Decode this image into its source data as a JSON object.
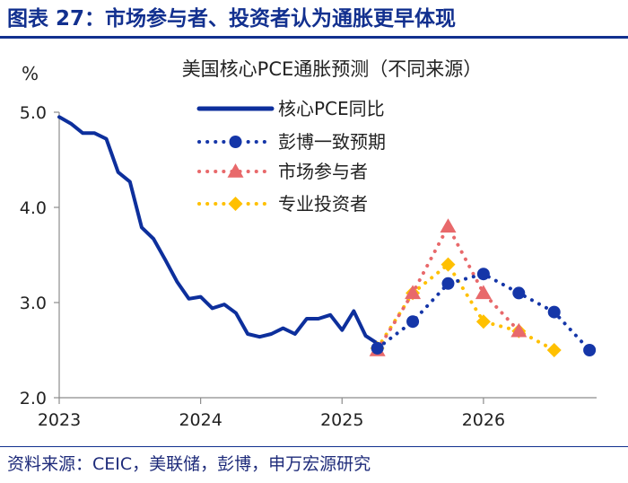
{
  "figure_title": "图表 27：市场参与者、投资者认为通胀更早体现",
  "source_text": "资料来源：CEIC，美联储，彭博，申万宏源研究",
  "colors": {
    "brand": "#12308f",
    "core_pce": "#0d2f9c",
    "bloomberg": "#1536a8",
    "market": "#e8696b",
    "professional": "#ffc000"
  },
  "chart_data": {
    "type": "line",
    "title": "美国核心PCE通胀预测（不同来源）",
    "ylabel": "%",
    "xlabel": "",
    "xlim": [
      2023.0,
      2026.8
    ],
    "ylim": [
      2.0,
      5.0
    ],
    "y_ticks": [
      2.0,
      3.0,
      4.0,
      5.0
    ],
    "y_tick_labels": [
      "2.0",
      "3.0",
      "4.0",
      "5.0"
    ],
    "x_ticks": [
      2023,
      2024,
      2025,
      2026
    ],
    "x_tick_labels": [
      "2023",
      "2024",
      "2025",
      "2026"
    ],
    "legend_position": "top-center",
    "series": [
      {
        "name": "核心PCE同比",
        "style": "solid",
        "marker": "none",
        "x": [
          2023.0,
          2023.083,
          2023.167,
          2023.25,
          2023.333,
          2023.417,
          2023.5,
          2023.583,
          2023.667,
          2023.75,
          2023.833,
          2023.917,
          2024.0,
          2024.083,
          2024.167,
          2024.25,
          2024.333,
          2024.417,
          2024.5,
          2024.583,
          2024.667,
          2024.75,
          2024.833,
          2024.917,
          2025.0,
          2025.083,
          2025.167,
          2025.25
        ],
        "values": [
          4.95,
          4.88,
          4.78,
          4.78,
          4.72,
          4.37,
          4.27,
          3.79,
          3.67,
          3.45,
          3.22,
          3.04,
          3.06,
          2.94,
          2.98,
          2.89,
          2.67,
          2.64,
          2.67,
          2.73,
          2.67,
          2.83,
          2.83,
          2.87,
          2.71,
          2.91,
          2.65,
          2.57
        ]
      },
      {
        "name": "彭博一致预期",
        "style": "dotted",
        "marker": "circle",
        "x": [
          2025.25,
          2025.5,
          2025.75,
          2026.0,
          2026.25,
          2026.5,
          2026.75
        ],
        "values": [
          2.52,
          2.8,
          3.2,
          3.3,
          3.1,
          2.9,
          2.5
        ]
      },
      {
        "name": "市场参与者",
        "style": "dotted",
        "marker": "triangle",
        "x": [
          2025.25,
          2025.5,
          2025.75,
          2026.0,
          2026.25
        ],
        "values": [
          2.5,
          3.1,
          3.8,
          3.1,
          2.7
        ]
      },
      {
        "name": "专业投资者",
        "style": "dotted",
        "marker": "diamond",
        "x": [
          2025.25,
          2025.5,
          2025.75,
          2026.0,
          2026.25,
          2026.5
        ],
        "values": [
          2.52,
          3.1,
          3.4,
          2.8,
          2.7,
          2.5
        ]
      }
    ]
  }
}
